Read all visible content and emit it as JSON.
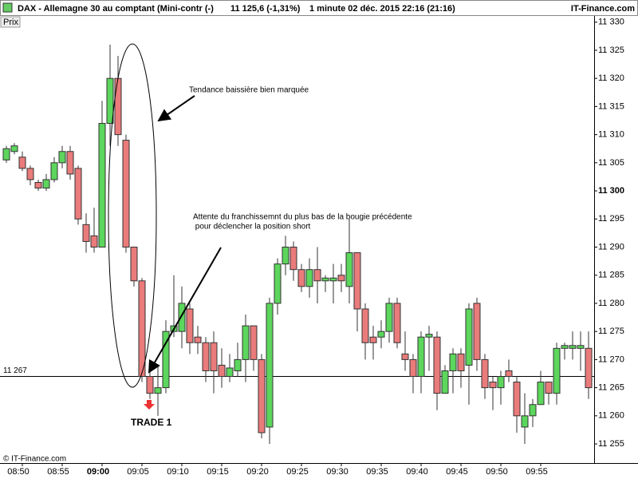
{
  "chart_data": {
    "type": "candlestick",
    "header": {
      "title": "DAX - Allemagne 30 au comptant (Mini-contr (-)",
      "price": "11 125,6 (-1,31%)",
      "period": "1 minute  02 déc. 2015 22:16 (21:16)",
      "source": "IT-Finance.com"
    },
    "axis_label": "Prix",
    "footer": "© IT-Finance.com",
    "annotations": [
      "Tendance baissière bien marquée",
      "Attente du franchissemnt du plus bas de la bougie précédente",
      " pour déclencher la position short",
      "TRADE 1"
    ],
    "categories": [
      null,
      null,
      "08:50",
      null,
      null,
      null,
      null,
      "08:55",
      null,
      null,
      null,
      null,
      "09:00",
      null,
      null,
      null,
      null,
      "09:05",
      null,
      null,
      null,
      null,
      "09:10",
      null,
      null,
      null,
      null,
      "09:15",
      null,
      null,
      null,
      null,
      "09:20",
      null,
      null,
      null,
      null,
      "09:25",
      null,
      null,
      null,
      null,
      "09:30",
      null,
      null,
      null,
      null,
      "09:35",
      null,
      null,
      null,
      null,
      "09:40",
      null,
      null,
      null,
      null,
      "09:45",
      null,
      null,
      null,
      null,
      "09:50",
      null,
      null,
      null,
      null,
      "09:55",
      null,
      null,
      null,
      null,
      null,
      null
    ],
    "bold_categories": [
      12
    ],
    "open": [
      11305.5,
      11307,
      11306,
      11304,
      11301.5,
      11300.5,
      11302,
      11305,
      11307,
      11304,
      11294,
      11292,
      11290,
      11312,
      11320,
      11309,
      11290,
      11284,
      11267,
      11264,
      11265,
      11275,
      11275,
      11279,
      11274,
      11273,
      11273,
      11269,
      11267,
      11268,
      11270,
      11276,
      11270,
      11258,
      11280,
      11287,
      11290,
      11286,
      11283,
      11286,
      11284,
      11284,
      11285,
      11283,
      11289,
      11279,
      11274,
      11274,
      11275,
      11280,
      11271,
      11270,
      11267,
      11274,
      11274,
      11264,
      11268,
      11271,
      11269,
      11280,
      11270,
      11266,
      11265,
      11268,
      11266,
      11258,
      11260,
      11262,
      11266,
      11264,
      11272,
      11272,
      11272,
      11272
    ],
    "high": [
      11308,
      11308.5,
      11307,
      11304.5,
      11302,
      11303,
      11306,
      11308,
      11308,
      11304.5,
      11296,
      11297,
      11316,
      11326,
      11324,
      11310,
      11290,
      11284.5,
      11269,
      11269,
      11277,
      11285,
      11283,
      11280,
      11276,
      11274,
      11275,
      11272,
      11271,
      11273,
      11278,
      11276,
      11271,
      11281,
      11288,
      11292,
      11291,
      11287,
      11288,
      11290,
      11285,
      11287,
      11287,
      11295,
      11289,
      11280,
      11276,
      11277,
      11281,
      11281,
      11275,
      11271,
      11275,
      11276,
      11275,
      11269,
      11272,
      11272,
      11280,
      11281,
      11271,
      11267,
      11268,
      11270,
      11267,
      11264,
      11263,
      11268,
      11266,
      11273,
      11273,
      11275,
      11275,
      11275
    ],
    "low": [
      11305,
      11306.5,
      11303.5,
      11301,
      11300,
      11300,
      11301.5,
      11304,
      11302,
      11294,
      11289,
      11289,
      11290,
      11308,
      11308,
      11289,
      11283,
      11266,
      11263,
      11260,
      11264,
      11274,
      11272,
      11271,
      11271,
      11266,
      11264,
      11265,
      11266,
      11267,
      11266,
      11268,
      11256,
      11255,
      11278,
      11285,
      11284,
      11282,
      11281,
      11280,
      11282,
      11280,
      11282,
      11280,
      11275,
      11270,
      11270,
      11272,
      11273,
      11272,
      11268,
      11264,
      11264,
      11268,
      11261,
      11264,
      11264,
      11265,
      11262,
      11268,
      11263,
      11261,
      11262,
      11266,
      11257,
      11255,
      11258,
      11262,
      11262,
      11262,
      11270,
      11270,
      11268,
      11263
    ],
    "close": [
      11307.5,
      11308,
      11304,
      11302,
      11300.5,
      11302,
      11305,
      11307,
      11303,
      11295,
      11291,
      11290,
      11312,
      11320,
      11310,
      11290,
      11284,
      11267,
      11264,
      11265,
      11275,
      11276,
      11280,
      11273,
      11273,
      11268,
      11268,
      11267,
      11268.5,
      11270,
      11276,
      11270,
      11257,
      11280,
      11287,
      11290,
      11286,
      11283,
      11286,
      11284,
      11284.5,
      11284.5,
      11284,
      11289,
      11279,
      11273,
      11273,
      11275,
      11280,
      11273,
      11270,
      11267,
      11274,
      11274.5,
      11264,
      11268,
      11271,
      11268,
      11279,
      11270,
      11265,
      11265,
      11267,
      11267,
      11260,
      11260,
      11262,
      11266,
      11264,
      11272,
      11272.5,
      11272.5,
      11272.5,
      11265
    ],
    "up_color": "#5cd65c",
    "down_color": "#ea7b7b",
    "ylim": [
      11251.6,
      11331.1
    ],
    "yticks": [
      {
        "value": 11255,
        "label": "11 255"
      },
      {
        "value": 11260,
        "label": "11 260"
      },
      {
        "value": 11265,
        "label": "11 265"
      },
      {
        "value": 11270,
        "label": "11 270"
      },
      {
        "value": 11275,
        "label": "11 275"
      },
      {
        "value": 11280,
        "label": "11 280"
      },
      {
        "value": 11285,
        "label": "11 285"
      },
      {
        "value": 11290,
        "label": "11 290"
      },
      {
        "value": 11295,
        "label": "11 295"
      },
      {
        "value": 11300,
        "label": "11 300",
        "bold": true
      },
      {
        "value": 11305,
        "label": "11 305"
      },
      {
        "value": 11310,
        "label": "11 310"
      },
      {
        "value": 11315,
        "label": "11 315"
      },
      {
        "value": 11320,
        "label": "11 320"
      },
      {
        "value": 11325,
        "label": "11 325"
      },
      {
        "value": 11330,
        "label": "11 330"
      }
    ],
    "hline": {
      "value": 11267,
      "label": "11 267"
    }
  }
}
